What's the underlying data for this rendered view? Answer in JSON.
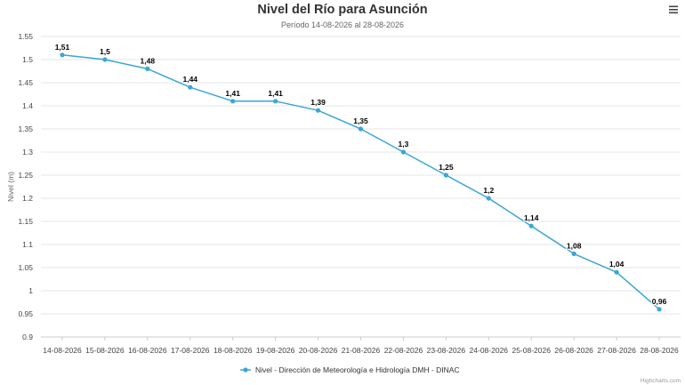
{
  "menu_icon": "hamburger-menu-icon",
  "chart_data": {
    "type": "line",
    "title": "Nivel del Río para Asunción",
    "subtitle": "Período 14-08-2026 al 28-08-2026",
    "xlabel": "",
    "ylabel": "Nivel (m)",
    "categories": [
      "14-08-2026",
      "15-08-2026",
      "16-08-2026",
      "17-08-2026",
      "18-08-2026",
      "19-08-2026",
      "20-08-2026",
      "21-08-2026",
      "22-08-2026",
      "23-08-2026",
      "24-08-2026",
      "25-08-2026",
      "26-08-2026",
      "27-08-2026",
      "28-08-2026"
    ],
    "series": [
      {
        "name": "Nivel - Dirección de Meteorología e Hidrología DMH - DINAC",
        "color": "#3aa6d6",
        "values": [
          1.51,
          1.5,
          1.48,
          1.44,
          1.41,
          1.41,
          1.39,
          1.35,
          1.3,
          1.25,
          1.2,
          1.14,
          1.08,
          1.04,
          0.96
        ],
        "data_labels": [
          "1,51",
          "1,5",
          "1,48",
          "1,44",
          "1,41",
          "1,41",
          "1,39",
          "1,35",
          "1,3",
          "1,25",
          "1,2",
          "1,14",
          "1,08",
          "1,04",
          "0,96"
        ]
      }
    ],
    "ylim": [
      0.9,
      1.55
    ],
    "yticks": [
      0.9,
      0.95,
      1,
      1.05,
      1.1,
      1.15,
      1.2,
      1.25,
      1.3,
      1.35,
      1.4,
      1.45,
      1.5,
      1.55
    ],
    "ytick_labels": [
      "0.9",
      "0.95",
      "1",
      "1.05",
      "1.1",
      "1.15",
      "1.2",
      "1.25",
      "1.3",
      "1.35",
      "1.4",
      "1.45",
      "1.5",
      "1.55"
    ],
    "grid": true,
    "legend_position": "bottom-center",
    "credits": "Highcharts.com"
  }
}
